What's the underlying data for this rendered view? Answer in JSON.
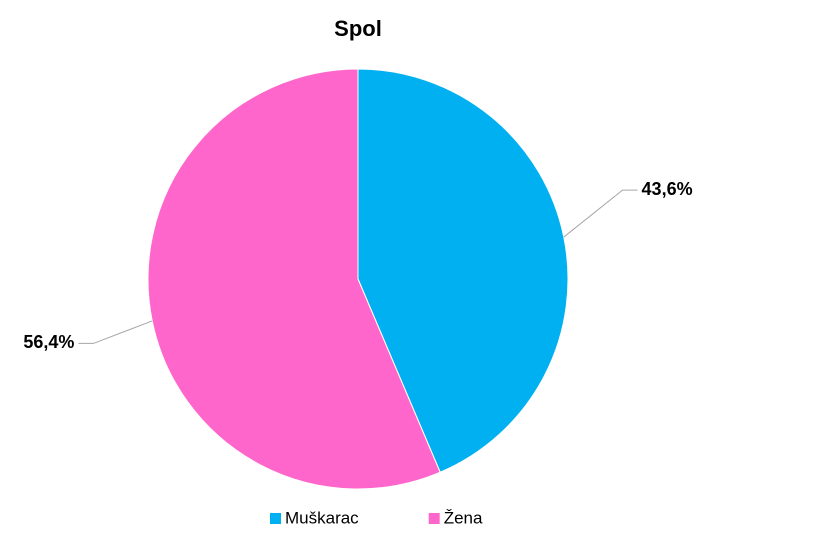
{
  "chart_data": {
    "type": "pie",
    "title": "Spol",
    "categories": [
      "Muškarac",
      "Žena"
    ],
    "values": [
      43.6,
      56.4
    ],
    "value_labels": [
      "43,6%",
      "56,4%"
    ],
    "colors": [
      "#00b0f0",
      "#ff66cc"
    ],
    "legend": "bottom"
  }
}
